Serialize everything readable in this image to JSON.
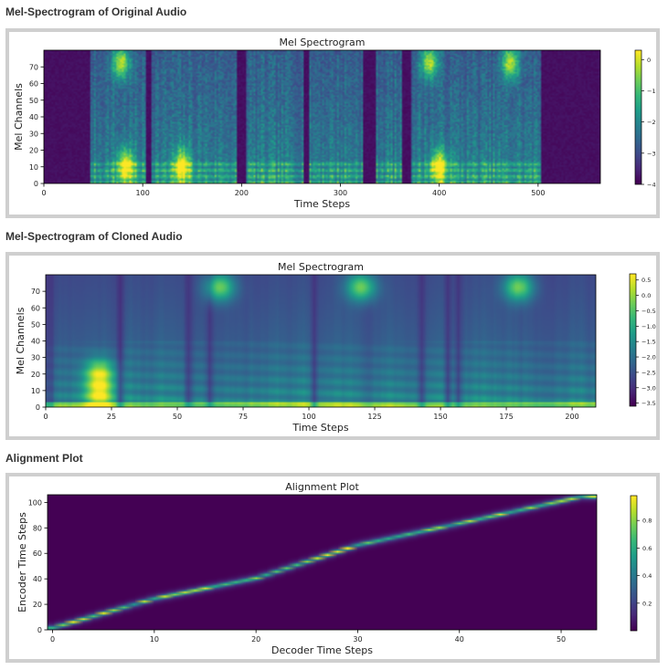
{
  "sections": [
    {
      "heading": "Mel-Spectrogram of Original Audio"
    },
    {
      "heading": "Mel-Spectrogram of Cloned Audio"
    },
    {
      "heading": "Alignment Plot"
    }
  ],
  "chart_data": [
    {
      "type": "heatmap",
      "title": "Mel Spectrogram",
      "xlabel": "Time Steps",
      "ylabel": "Mel Channels",
      "xlim": [
        0,
        563
      ],
      "ylim": [
        0,
        80
      ],
      "xticks": [
        0,
        100,
        200,
        300,
        400,
        500
      ],
      "yticks": [
        0,
        10,
        20,
        30,
        40,
        50,
        60,
        70
      ],
      "colorbar": {
        "min": -4.0,
        "max": 0.3,
        "ticks": [
          -4,
          -3,
          -2,
          -1,
          0
        ],
        "tick_labels": [
          "−4",
          "−3",
          "−2",
          "−1",
          "0"
        ]
      },
      "colormap": "viridis",
      "active_segments": [
        [
          47,
          103
        ],
        [
          108,
          196
        ],
        [
          205,
          262
        ],
        [
          268,
          322
        ],
        [
          335,
          362
        ],
        [
          372,
          503
        ]
      ],
      "hot_spots": [
        [
          78,
          72
        ],
        [
          390,
          72
        ],
        [
          472,
          72
        ],
        [
          83,
          10
        ],
        [
          140,
          10
        ],
        [
          400,
          10
        ]
      ]
    },
    {
      "type": "heatmap",
      "title": "Mel Spectrogram",
      "xlabel": "Time Steps",
      "ylabel": "Mel Channels",
      "xlim": [
        0,
        209
      ],
      "ylim": [
        0,
        80
      ],
      "xticks": [
        0,
        25,
        50,
        75,
        100,
        125,
        150,
        175,
        200
      ],
      "yticks": [
        0,
        10,
        20,
        30,
        40,
        50,
        60,
        70
      ],
      "colorbar": {
        "min": -3.6,
        "max": 0.7,
        "ticks": [
          0.5,
          0.0,
          -0.5,
          -1.0,
          -1.5,
          -2.0,
          -2.5,
          -3.0,
          -3.5
        ],
        "tick_labels": [
          "0.5",
          "0.0",
          "−0.5",
          "−1.0",
          "−1.5",
          "−2.0",
          "−2.5",
          "−3.0",
          "−3.5"
        ]
      },
      "colormap": "viridis",
      "vertical_bands": [
        28,
        54,
        62,
        102,
        143,
        153,
        157
      ],
      "hot_spots": [
        [
          66,
          72
        ],
        [
          120,
          72
        ],
        [
          180,
          72
        ],
        [
          20,
          20
        ],
        [
          20,
          7
        ]
      ]
    },
    {
      "type": "heatmap",
      "title": "Alignment Plot",
      "xlabel": "Decoder Time Steps",
      "ylabel": "Encoder Time Steps",
      "xlim": [
        -0.5,
        53.5
      ],
      "ylim": [
        0,
        106
      ],
      "xticks": [
        0,
        10,
        20,
        30,
        40,
        50
      ],
      "yticks": [
        0,
        20,
        40,
        60,
        80,
        100
      ],
      "colorbar": {
        "min": 0.0,
        "max": 0.98,
        "ticks": [
          0.2,
          0.4,
          0.6,
          0.8
        ],
        "tick_labels": [
          "0.2",
          "0.4",
          "0.6",
          "0.8"
        ]
      },
      "colormap": "viridis",
      "alignment_path": [
        [
          0,
          1
        ],
        [
          10,
          24
        ],
        [
          20,
          40
        ],
        [
          30,
          66
        ],
        [
          40,
          83
        ],
        [
          52,
          104
        ]
      ]
    }
  ]
}
